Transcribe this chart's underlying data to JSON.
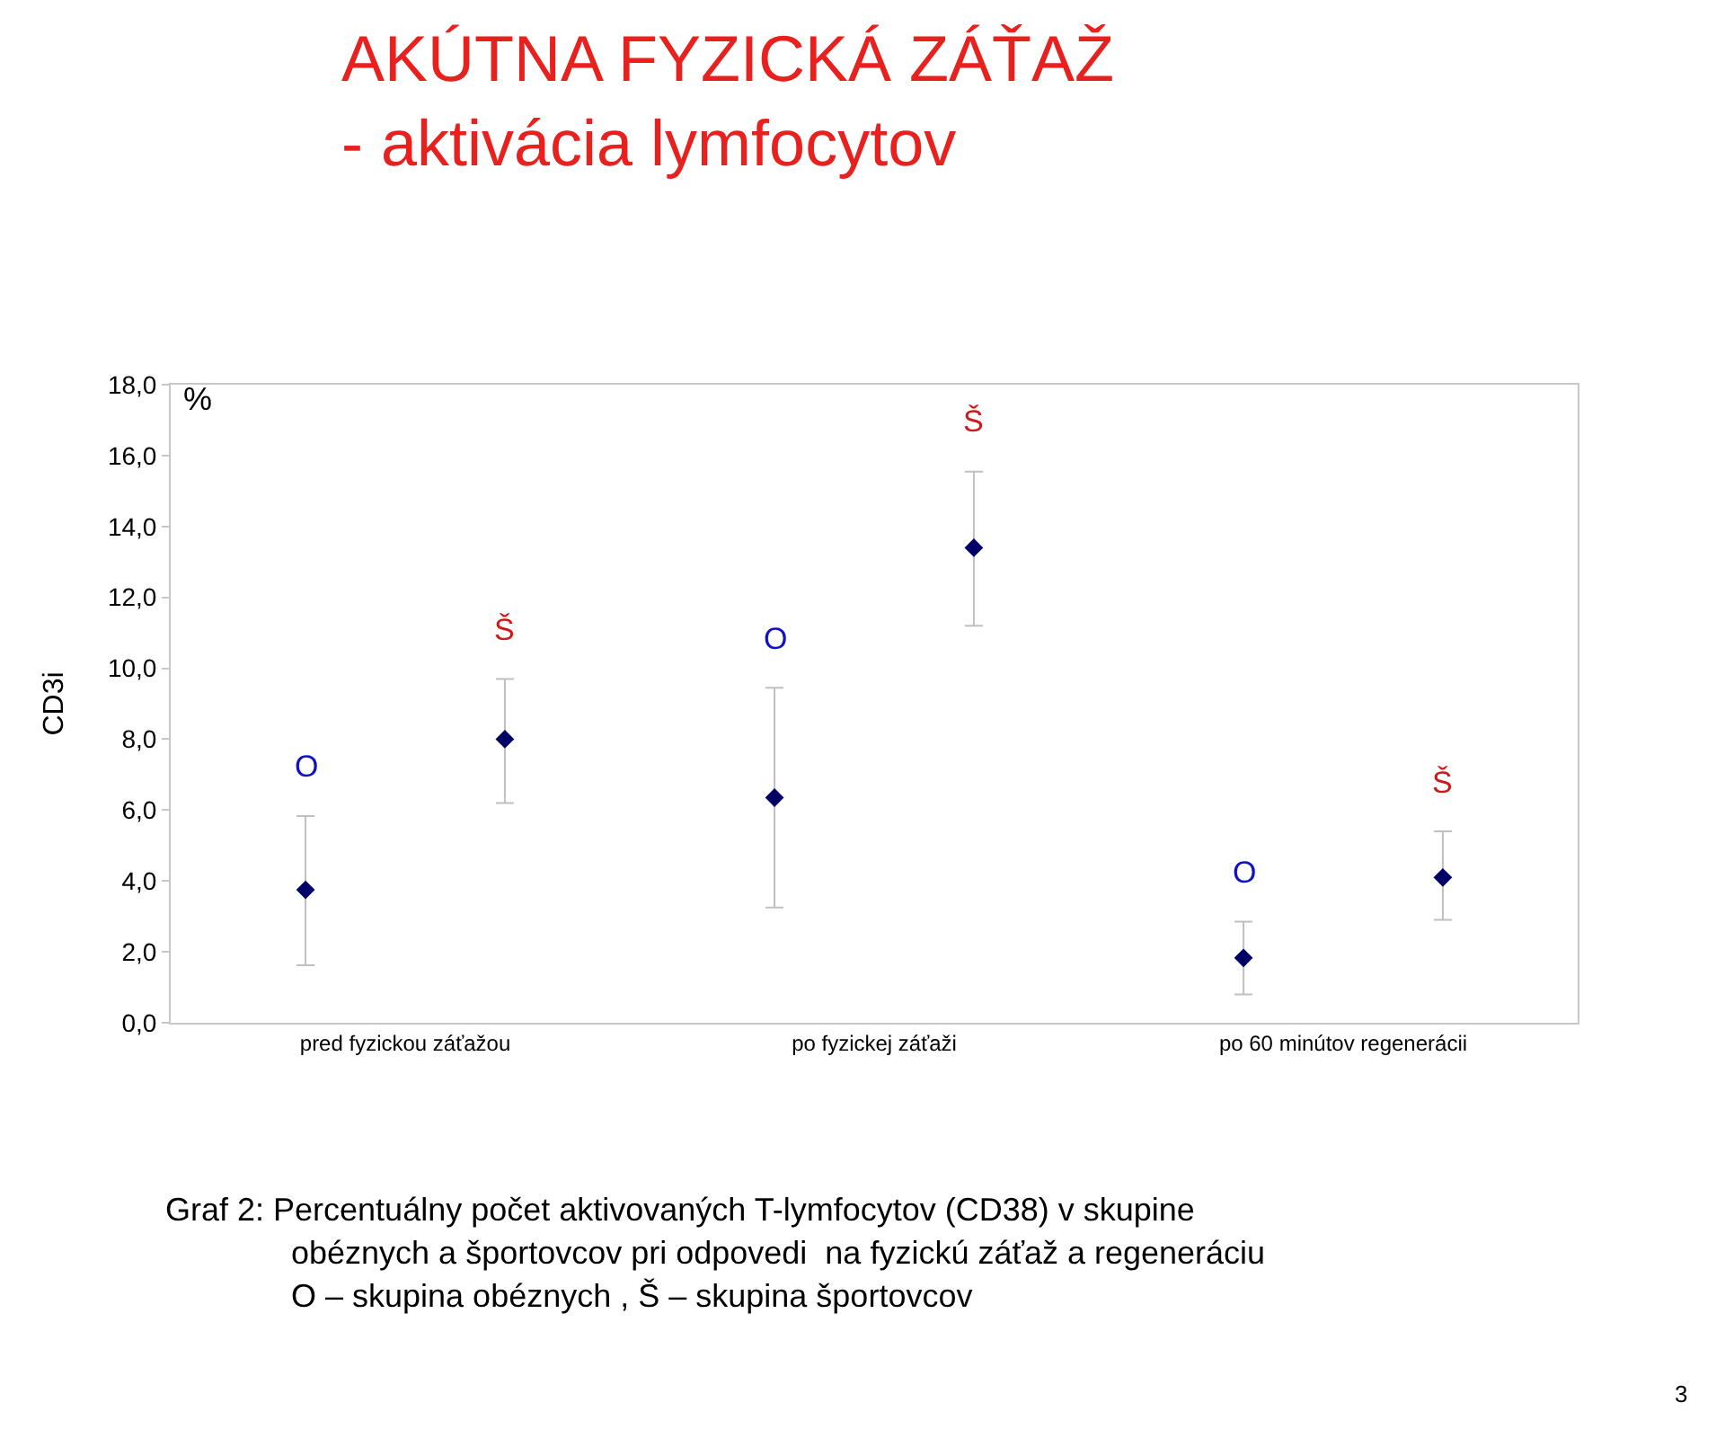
{
  "chart_data": {
    "type": "scatter",
    "title": "AKÚTNA FYZICKÁ ZÁŤAŽ\n- aktivácia lymfocytov",
    "ylabel": "CD3i",
    "categories": [
      "pred fyzickou záťažou",
      "po fyzickej záťaži",
      "po 60 minútov regenerácii"
    ],
    "series": [
      {
        "name": "O",
        "color": "#000066",
        "values": [
          3.75,
          6.35,
          1.83
        ],
        "errors": [
          [
            1.62,
            5.83
          ],
          [
            3.25,
            9.45
          ],
          [
            0.8,
            2.85
          ]
        ]
      },
      {
        "name": "Š",
        "color": "#000066",
        "values": [
          8.0,
          13.4,
          4.1
        ],
        "errors": [
          [
            6.2,
            9.7
          ],
          [
            11.2,
            15.55
          ],
          [
            2.9,
            5.4
          ]
        ]
      }
    ],
    "marker": "diamond",
    "legend": false,
    "ylim": [
      0,
      18
    ],
    "yticks": [
      {
        "value": 0,
        "label": "0,0"
      },
      {
        "value": 2,
        "label": "2,0"
      },
      {
        "value": 4,
        "label": "4,0"
      },
      {
        "value": 6,
        "label": "6,0"
      },
      {
        "value": 8,
        "label": "8,0"
      },
      {
        "value": 10,
        "label": "10,0"
      },
      {
        "value": 12,
        "label": "12,0"
      },
      {
        "value": 14,
        "label": "14,0"
      },
      {
        "value": 16,
        "label": "16,0"
      },
      {
        "value": 18,
        "label": "18,0"
      }
    ],
    "annotations": [
      "%",
      "3",
      "Graf 2: Percentuálny počet aktivovaných T-lymfocytov (CD38) v skupine",
      "obéznych a športovcov pri odpovedi  na fyzickú záťaž a regeneráciu",
      "O – skupina obéznych , Š – skupina športovcov"
    ]
  }
}
